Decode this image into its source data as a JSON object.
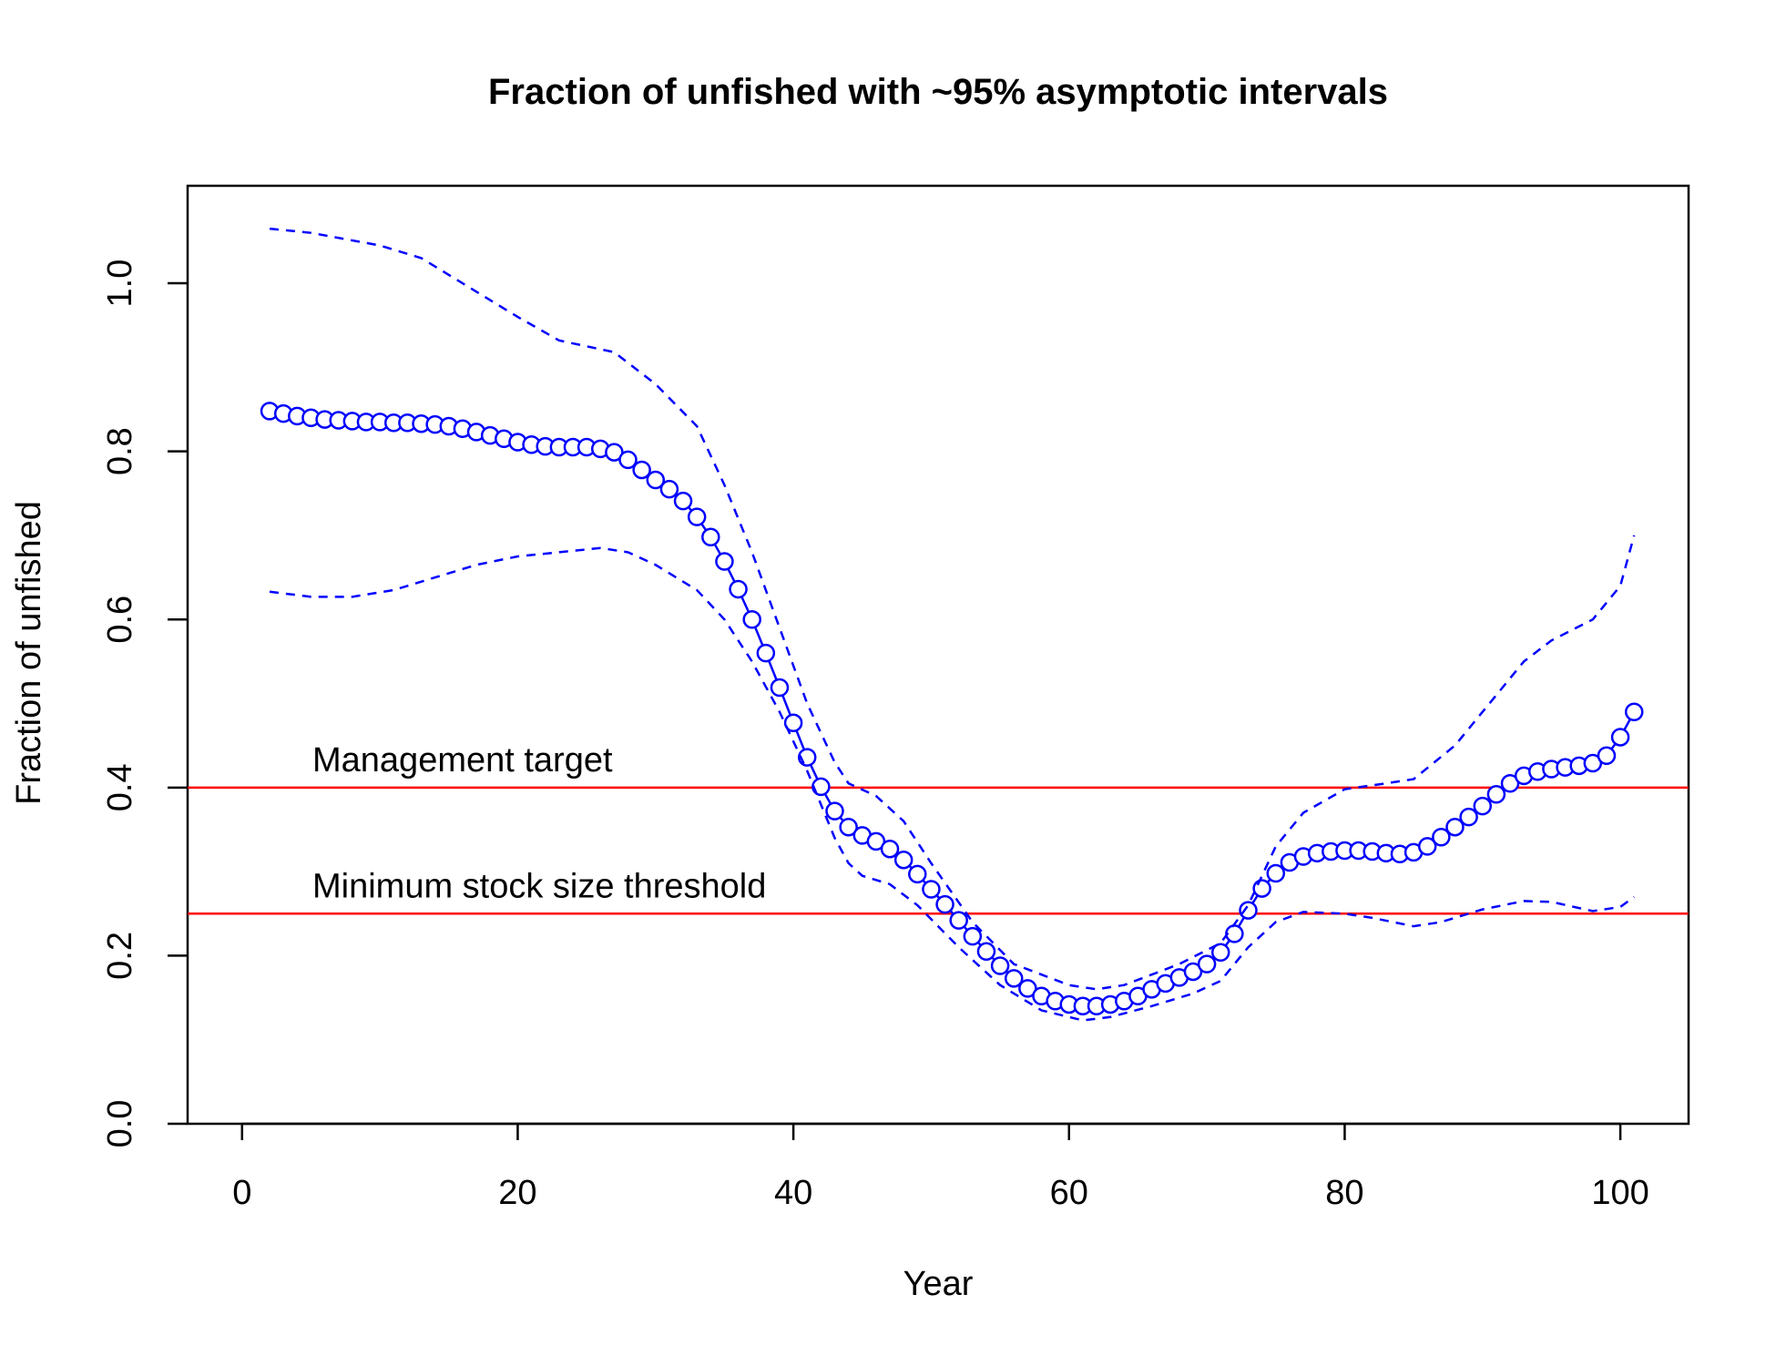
{
  "chart_data": {
    "type": "line",
    "title": "Fraction of unfished with ~95% asymptotic intervals",
    "xlabel": "Year",
    "ylabel": "Fraction of unfished",
    "xlim": [
      -3.95,
      104.95
    ],
    "xticks": [
      0,
      20,
      40,
      60,
      80,
      100
    ],
    "ylim": [
      0,
      1.116
    ],
    "yticks": [
      {
        "value": 0,
        "label": "0.0"
      },
      {
        "value": 0.2,
        "label": "0.2"
      },
      {
        "value": 0.4,
        "label": "0.4"
      },
      {
        "value": 0.6,
        "label": "0.6"
      },
      {
        "value": 0.8,
        "label": "0.8"
      },
      {
        "value": 1,
        "label": "1.0"
      }
    ],
    "series": [
      {
        "color": "#0000ff",
        "line_style": "solid",
        "marker": "circle",
        "x": [
          2,
          3,
          4,
          5,
          6,
          7,
          8,
          9,
          10,
          11,
          12,
          13,
          14,
          15,
          16,
          17,
          18,
          19,
          20,
          21,
          22,
          23,
          24,
          25,
          26,
          27,
          28,
          29,
          30,
          31,
          32,
          33,
          34,
          35,
          36,
          37,
          38,
          39,
          40,
          41,
          42,
          43,
          44,
          45,
          46,
          47,
          48,
          49,
          50,
          51,
          52,
          53,
          54,
          55,
          56,
          57,
          58,
          59,
          60,
          61,
          62,
          63,
          64,
          65,
          66,
          67,
          68,
          69,
          70,
          71,
          72,
          73,
          74,
          75,
          76,
          77,
          78,
          79,
          80,
          81,
          82,
          83,
          84,
          85,
          86,
          87,
          88,
          89,
          90,
          91,
          92,
          93,
          94,
          95,
          96,
          97,
          98,
          99,
          100,
          101
        ],
        "values": [
          0.848,
          0.845,
          0.842,
          0.84,
          0.838,
          0.837,
          0.836,
          0.835,
          0.835,
          0.834,
          0.834,
          0.833,
          0.832,
          0.83,
          0.827,
          0.823,
          0.819,
          0.815,
          0.811,
          0.808,
          0.806,
          0.805,
          0.805,
          0.805,
          0.803,
          0.799,
          0.79,
          0.778,
          0.766,
          0.755,
          0.741,
          0.722,
          0.698,
          0.669,
          0.636,
          0.6,
          0.56,
          0.519,
          0.477,
          0.436,
          0.401,
          0.372,
          0.353,
          0.343,
          0.336,
          0.327,
          0.314,
          0.297,
          0.279,
          0.261,
          0.242,
          0.223,
          0.205,
          0.188,
          0.173,
          0.161,
          0.152,
          0.146,
          0.142,
          0.14,
          0.14,
          0.142,
          0.146,
          0.152,
          0.16,
          0.167,
          0.174,
          0.181,
          0.19,
          0.204,
          0.226,
          0.254,
          0.28,
          0.298,
          0.311,
          0.318,
          0.322,
          0.324,
          0.325,
          0.325,
          0.324,
          0.322,
          0.321,
          0.323,
          0.33,
          0.341,
          0.353,
          0.365,
          0.378,
          0.392,
          0.405,
          0.414,
          0.419,
          0.422,
          0.424,
          0.426,
          0.429,
          0.438,
          0.46,
          0.49
        ]
      },
      {
        "color": "#0000ff",
        "line_style": "dashed",
        "x": [
          2,
          5,
          10,
          13,
          16,
          20,
          23,
          27,
          30,
          33,
          35,
          37,
          39,
          41,
          43,
          44,
          46,
          48,
          50,
          53,
          56,
          60,
          62,
          64,
          68,
          71,
          73,
          75,
          77,
          80,
          83,
          85,
          88,
          91,
          93,
          95,
          98,
          100,
          101
        ],
        "values": [
          1.065,
          1.06,
          1.045,
          1.03,
          1.0,
          0.96,
          0.932,
          0.918,
          0.88,
          0.83,
          0.76,
          0.68,
          0.59,
          0.5,
          0.43,
          0.405,
          0.39,
          0.36,
          0.31,
          0.24,
          0.19,
          0.165,
          0.16,
          0.165,
          0.19,
          0.215,
          0.26,
          0.33,
          0.37,
          0.398,
          0.405,
          0.41,
          0.45,
          0.51,
          0.55,
          0.575,
          0.6,
          0.64,
          0.7
        ]
      },
      {
        "color": "#0000ff",
        "line_style": "dashed",
        "x": [
          2,
          5,
          8,
          11,
          14,
          17,
          20,
          23,
          26,
          28,
          30,
          33,
          35,
          37,
          39,
          41,
          43,
          44,
          45,
          47,
          49,
          52,
          55,
          58,
          61,
          63,
          66,
          69,
          71,
          73,
          75,
          77,
          80,
          82,
          85,
          87,
          90,
          93,
          95,
          98,
          100,
          101
        ],
        "values": [
          0.633,
          0.627,
          0.627,
          0.635,
          0.65,
          0.665,
          0.675,
          0.68,
          0.685,
          0.68,
          0.665,
          0.635,
          0.6,
          0.55,
          0.49,
          0.42,
          0.34,
          0.31,
          0.295,
          0.285,
          0.26,
          0.21,
          0.165,
          0.135,
          0.123,
          0.127,
          0.14,
          0.155,
          0.17,
          0.21,
          0.24,
          0.252,
          0.25,
          0.245,
          0.235,
          0.24,
          0.255,
          0.265,
          0.264,
          0.253,
          0.258,
          0.27
        ]
      }
    ],
    "hlines": [
      {
        "y": 0.4,
        "label": "Management target",
        "color": "#ff0000"
      },
      {
        "y": 0.25,
        "label": "Minimum stock size threshold",
        "color": "#ff0000"
      }
    ]
  }
}
